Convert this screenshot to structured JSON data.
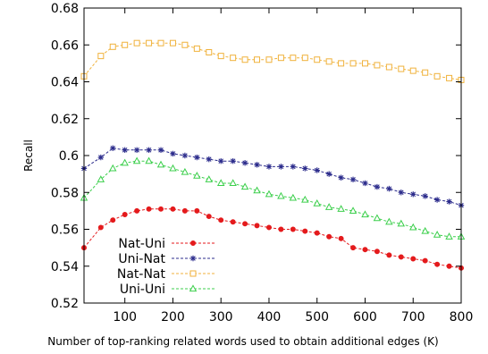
{
  "chart_data": {
    "type": "line",
    "xlabel": "Number of top-ranking related words used to obtain additional edges (K)",
    "ylabel": "Recall",
    "xlim": [
      15,
      800
    ],
    "ylim": [
      0.52,
      0.68
    ],
    "xticks": [
      100,
      200,
      300,
      400,
      500,
      600,
      700,
      800
    ],
    "xtick_labels": [
      "100",
      "200",
      "300",
      "400",
      "500",
      "600",
      "700",
      "800"
    ],
    "yticks": [
      0.52,
      0.54,
      0.56,
      0.58,
      0.6,
      0.62,
      0.64,
      0.66,
      0.68
    ],
    "ytick_labels": [
      "0.52",
      "0.54",
      "0.56",
      "0.58",
      "0.6",
      "0.62",
      "0.64",
      "0.66",
      "0.68"
    ],
    "grid": false,
    "legend_position": "bottom-left",
    "x": [
      15,
      50,
      75,
      100,
      125,
      150,
      175,
      200,
      225,
      250,
      275,
      300,
      325,
      350,
      375,
      400,
      425,
      450,
      475,
      500,
      525,
      550,
      575,
      600,
      625,
      650,
      675,
      700,
      725,
      750,
      775,
      800
    ],
    "series": [
      {
        "name": "Nat-Uni",
        "color": "#e41a1c",
        "marker": "circle",
        "values": [
          0.55,
          0.561,
          0.565,
          0.568,
          0.57,
          0.571,
          0.571,
          0.571,
          0.57,
          0.57,
          0.567,
          0.565,
          0.564,
          0.563,
          0.562,
          0.561,
          0.56,
          0.56,
          0.559,
          0.558,
          0.556,
          0.555,
          0.55,
          0.549,
          0.548,
          0.546,
          0.545,
          0.544,
          0.543,
          0.541,
          0.54,
          0.539
        ]
      },
      {
        "name": "Uni-Nat",
        "color": "#2c2c8c",
        "marker": "star",
        "values": [
          0.593,
          0.599,
          0.604,
          0.603,
          0.603,
          0.603,
          0.603,
          0.601,
          0.6,
          0.599,
          0.598,
          0.597,
          0.597,
          0.596,
          0.595,
          0.594,
          0.594,
          0.594,
          0.593,
          0.592,
          0.59,
          0.588,
          0.587,
          0.585,
          0.583,
          0.582,
          0.58,
          0.579,
          0.578,
          0.576,
          0.575,
          0.573
        ]
      },
      {
        "name": "Nat-Nat",
        "color": "#f0b23c",
        "marker": "square",
        "values": [
          0.643,
          0.654,
          0.659,
          0.66,
          0.661,
          0.661,
          0.661,
          0.661,
          0.66,
          0.658,
          0.656,
          0.654,
          0.653,
          0.652,
          0.652,
          0.652,
          0.653,
          0.653,
          0.653,
          0.652,
          0.651,
          0.65,
          0.65,
          0.65,
          0.649,
          0.648,
          0.647,
          0.646,
          0.645,
          0.643,
          0.642,
          0.641
        ]
      },
      {
        "name": "Uni-Uni",
        "color": "#3ccf4c",
        "marker": "triangle",
        "values": [
          0.577,
          0.587,
          0.593,
          0.596,
          0.597,
          0.597,
          0.595,
          0.593,
          0.591,
          0.589,
          0.587,
          0.585,
          0.585,
          0.583,
          0.581,
          0.579,
          0.578,
          0.577,
          0.576,
          0.574,
          0.572,
          0.571,
          0.57,
          0.568,
          0.566,
          0.564,
          0.563,
          0.561,
          0.559,
          0.557,
          0.556,
          0.556
        ]
      }
    ]
  }
}
